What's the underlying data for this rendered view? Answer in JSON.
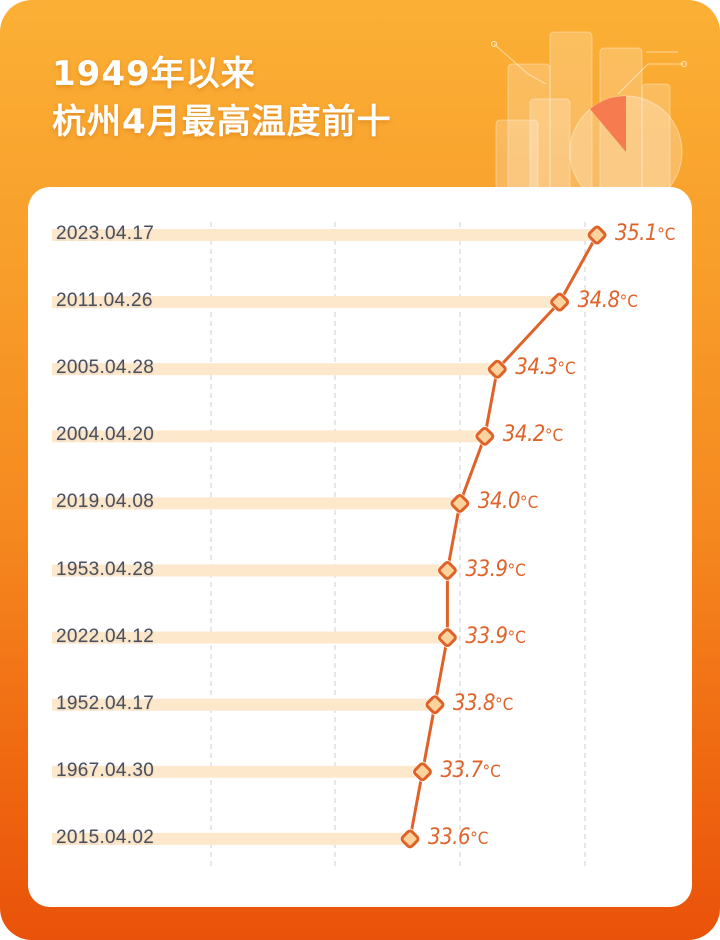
{
  "header": {
    "title_line1": "1949年以来",
    "title_line2": "杭州4月最高温度前十"
  },
  "colors": {
    "bg_top": "#fbb035",
    "bg_bottom": "#e9520a",
    "line": "#df6329",
    "bar": "#fde8cc",
    "marker_fill": "#fcd29d",
    "value_text": "#e0632a",
    "label_text": "#4a4f5c",
    "grid": "#cfcfcf"
  },
  "rows": [
    {
      "date": "2023.04.17",
      "value": 35.1,
      "value_label": "35.1",
      "unit": "°C"
    },
    {
      "date": "2011.04.26",
      "value": 34.8,
      "value_label": "34.8",
      "unit": "°C"
    },
    {
      "date": "2005.04.28",
      "value": 34.3,
      "value_label": "34.3",
      "unit": "°C"
    },
    {
      "date": "2004.04.20",
      "value": 34.2,
      "value_label": "34.2",
      "unit": "°C"
    },
    {
      "date": "2019.04.08",
      "value": 34.0,
      "value_label": "34.0",
      "unit": "°C"
    },
    {
      "date": "1953.04.28",
      "value": 33.9,
      "value_label": "33.9",
      "unit": "°C"
    },
    {
      "date": "2022.04.12",
      "value": 33.9,
      "value_label": "33.9",
      "unit": "°C"
    },
    {
      "date": "1952.04.17",
      "value": 33.8,
      "value_label": "33.8",
      "unit": "°C"
    },
    {
      "date": "1967.04.30",
      "value": 33.7,
      "value_label": "33.7",
      "unit": "°C"
    },
    {
      "date": "2015.04.02",
      "value": 33.6,
      "value_label": "33.6",
      "unit": "°C"
    }
  ],
  "chart_data": {
    "type": "bar",
    "orientation": "horizontal",
    "title": "1949年以来 杭州4月最高温度前十",
    "categories": [
      "2023.04.17",
      "2011.04.26",
      "2005.04.28",
      "2004.04.20",
      "2019.04.08",
      "1953.04.28",
      "2022.04.12",
      "1952.04.17",
      "1967.04.30",
      "2015.04.02"
    ],
    "values": [
      35.1,
      34.8,
      34.3,
      34.2,
      34.0,
      33.9,
      33.9,
      33.8,
      33.7,
      33.6
    ],
    "unit": "°C",
    "xlabel": "",
    "ylabel": "",
    "xlim": [
      31.3,
      35.5
    ],
    "gridlines_x": [
      32,
      33,
      34,
      35
    ],
    "grid": true,
    "grid_style": "dashed vertical",
    "legend": "none",
    "overlay": "line connecting bar end markers"
  }
}
